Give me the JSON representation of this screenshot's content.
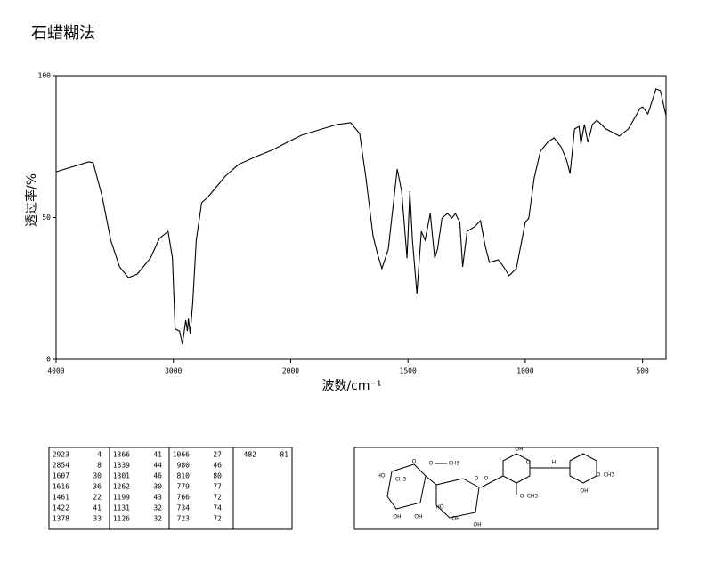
{
  "chart_data": {
    "type": "line",
    "title": "石蜡糊法",
    "x_label": "波数/cm⁻¹",
    "y_label": "透过率/%",
    "x": [
      4000,
      3722,
      3684,
      3609,
      3534,
      3459,
      3383,
      3308,
      3195,
      3120,
      3045,
      3008,
      2985,
      2947,
      2923,
      2895,
      2880,
      2872,
      2857,
      2835,
      2805,
      2759,
      2707,
      2632,
      2556,
      2444,
      2293,
      2143,
      2030,
      1954,
      1878,
      1802,
      1744,
      1706,
      1679,
      1649,
      1630,
      1611,
      1584,
      1546,
      1527,
      1504,
      1492,
      1481,
      1462,
      1443,
      1427,
      1405,
      1386,
      1374,
      1355,
      1332,
      1313,
      1298,
      1279,
      1267,
      1248,
      1217,
      1191,
      1172,
      1153,
      1115,
      1092,
      1069,
      1038,
      1000,
      985,
      962,
      935,
      905,
      878,
      847,
      824,
      809,
      790,
      771,
      763,
      748,
      733,
      714,
      695,
      656,
      599,
      561,
      511,
      500,
      477,
      443,
      424,
      400
    ],
    "values": [
      66.1,
      69.6,
      69.3,
      57.7,
      42.0,
      32.6,
      28.8,
      30.1,
      35.7,
      42.6,
      45.1,
      35.7,
      10.7,
      10.0,
      5.3,
      13.8,
      10.0,
      14.4,
      9.1,
      20.1,
      42.0,
      55.2,
      57.1,
      60.8,
      64.6,
      68.7,
      71.5,
      74.0,
      76.5,
      79.0,
      80.9,
      82.8,
      83.4,
      79.6,
      63.9,
      43.6,
      37.3,
      32.0,
      38.9,
      67.1,
      59.2,
      35.7,
      59.2,
      42.0,
      23.2,
      45.1,
      42.0,
      51.4,
      35.7,
      38.9,
      49.8,
      51.4,
      49.8,
      51.4,
      48.3,
      32.6,
      45.1,
      46.7,
      48.9,
      40.4,
      34.2,
      35.1,
      32.6,
      29.5,
      32.0,
      48.3,
      49.8,
      63.9,
      73.4,
      76.5,
      78.1,
      74.9,
      70.2,
      65.5,
      81.2,
      82.1,
      75.9,
      82.8,
      76.5,
      82.8,
      84.3,
      81.2,
      78.7,
      81.2,
      88.4,
      89.0,
      86.5,
      95.3,
      94.7,
      85.9
    ],
    "color": "#000000",
    "xlim": [
      4000,
      400
    ],
    "x_scale_break": 2000,
    "xticks": [
      4000,
      3000,
      2000,
      1500,
      1000,
      500
    ],
    "ylim": [
      0,
      100
    ],
    "yticks": [
      0,
      50,
      100
    ]
  },
  "peak_table": {
    "columns": [
      [
        [
          2923,
          4
        ],
        [
          2854,
          8
        ],
        [
          1607,
          30
        ],
        [
          1616,
          36
        ],
        [
          1461,
          22
        ],
        [
          1422,
          41
        ],
        [
          1378,
          33
        ]
      ],
      [
        [
          1366,
          41
        ],
        [
          1339,
          44
        ],
        [
          1301,
          46
        ],
        [
          1262,
          30
        ],
        [
          1199,
          43
        ],
        [
          1131,
          32
        ],
        [
          1126,
          32
        ]
      ],
      [
        [
          1066,
          27
        ],
        [
          980,
          46
        ],
        [
          810,
          80
        ],
        [
          779,
          77
        ],
        [
          766,
          72
        ],
        [
          734,
          74
        ],
        [
          723,
          72
        ]
      ],
      [
        [
          482,
          81
        ]
      ]
    ]
  },
  "structure": {
    "labels": [
      "O",
      "CH3",
      "HO",
      "OH",
      "OH",
      "O",
      "CH3",
      "O",
      "HO",
      "OH",
      "OH",
      "O",
      "OH",
      "O",
      "O",
      "CH3",
      "H",
      "O",
      "CH3",
      "OH"
    ]
  }
}
